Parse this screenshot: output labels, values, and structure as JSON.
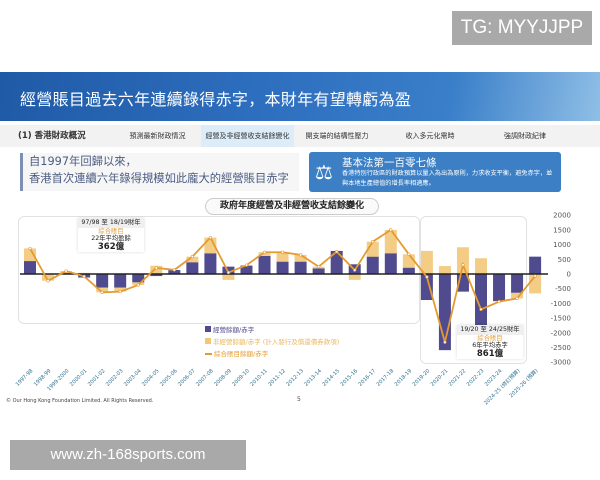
{
  "watermark_top": "TG: MYYJJPP",
  "watermark_bottom": "www.zh-168sports.com",
  "banner_title": "經營賬目過去六年連續錄得赤字，本財年有望轉虧為盈",
  "nav": {
    "section": "(1) 香港財政概況",
    "tabs": [
      "預測最新財政情況",
      "經營及非經營收支結餘變化",
      "開支端的結構性壓力",
      "收入多元化需時",
      "強調財政紀律"
    ],
    "active_index": 1
  },
  "quote": {
    "line1": "自1997年回歸以來，",
    "line2": "香港首次連續六年錄得規模如此龐大的經營賬目赤字"
  },
  "basic_law": {
    "icon": "scales-icon",
    "title": "基本法第一百零七條",
    "text": "香港特別行政區的財政預算以量入為出為原則，力求收支平衡，避免赤字，並與本地生產總值的增長率相適應。"
  },
  "annotations": [
    {
      "period": "97/98 至 18/19財年",
      "account": "綜合賬目",
      "label": "22年平均盈餘",
      "value": "362億"
    },
    {
      "period": "19/20 至 24/25財年",
      "account": "綜合賬目",
      "label": "6年平均赤字",
      "value": "861億"
    }
  ],
  "footer": "© Our Hong Kong Foundation Limited. All Rights Reserved.",
  "page_number": "5",
  "colors": {
    "operating": "#4f4b8e",
    "non_operating": "#f2c878",
    "consolidated": "#e49a32",
    "banner": "#2e6fbf"
  },
  "chart_data": {
    "type": "bar",
    "title": "政府年度經營及非經營收支結餘變化",
    "categories": [
      "1997-98",
      "1998-99",
      "1999-2000",
      "2000-01",
      "2001-02",
      "2002-03",
      "2003-04",
      "2004-05",
      "2005-06",
      "2006-07",
      "2007-08",
      "2008-09",
      "2009-10",
      "2010-11",
      "2011-12",
      "2012-13",
      "2013-14",
      "2014-15",
      "2015-16",
      "2016-17",
      "2017-18",
      "2018-19",
      "2019-20",
      "2020-21",
      "2021-22",
      "2022-23",
      "2023-24",
      "2024-25 (修訂預算)",
      "2025-26 (預算)"
    ],
    "series": [
      {
        "name": "經營餘額/赤字",
        "type": "bar",
        "values": [
          440,
          -20,
          30,
          -120,
          -465,
          -465,
          -285,
          -70,
          135,
          400,
          705,
          250,
          285,
          615,
          420,
          420,
          190,
          785,
          330,
          590,
          705,
          215,
          -885,
          -2590,
          -600,
          -1740,
          -920,
          -640,
          590
        ]
      },
      {
        "name": "非經營餘額/赤字 (計入發行及償還債券款項)",
        "type": "bar",
        "values": [
          430,
          -210,
          70,
          40,
          -160,
          -135,
          -90,
          280,
          5,
          190,
          535,
          -200,
          15,
          125,
          320,
          230,
          60,
          -25,
          -200,
          510,
          795,
          455,
          785,
          270,
          910,
          535,
          -20,
          -190,
          -660
        ]
      },
      {
        "name": "綜合賬目餘額/赤字",
        "type": "line",
        "values": [
          870,
          -230,
          100,
          -80,
          -625,
          -600,
          -375,
          210,
          140,
          590,
          1240,
          50,
          300,
          740,
          740,
          650,
          250,
          760,
          130,
          1100,
          1500,
          670,
          -100,
          -2320,
          310,
          -1205,
          -940,
          -830,
          -70
        ]
      }
    ],
    "yticks": [
      2000,
      1500,
      1000,
      500,
      0,
      -500,
      -1000,
      -1500,
      -2000,
      -2500,
      -3000
    ],
    "ylim": [
      -3000,
      2000
    ],
    "legend": "bottom-center"
  }
}
